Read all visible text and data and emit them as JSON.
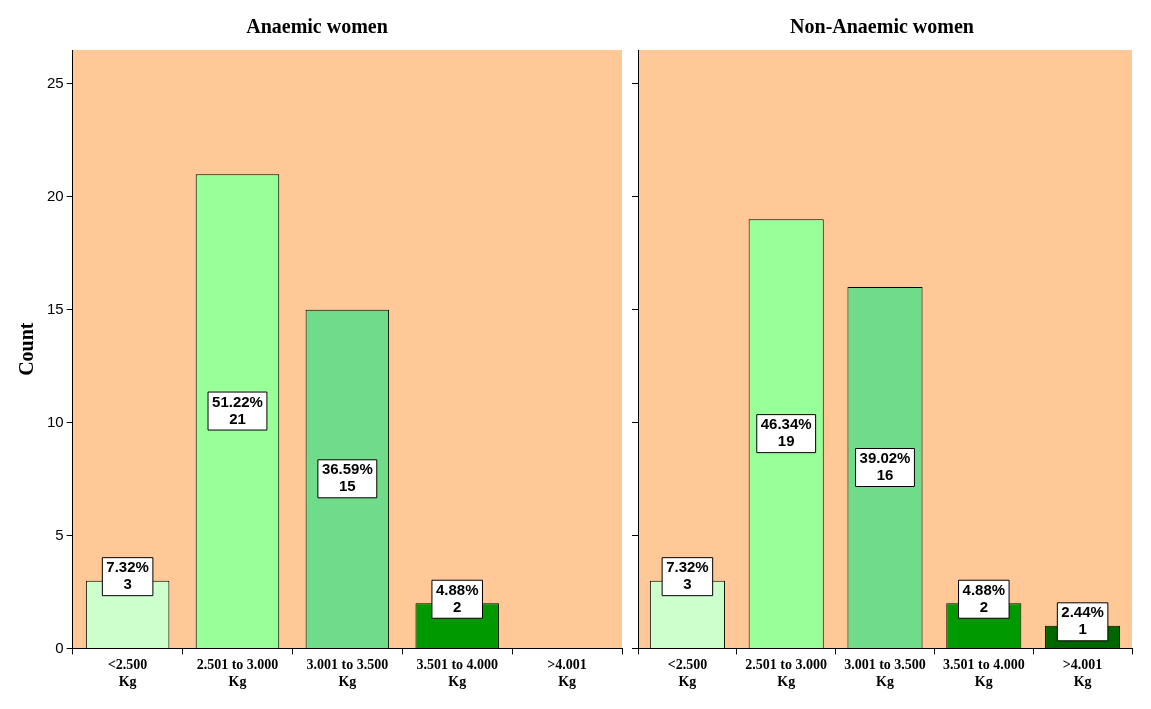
{
  "chart_data": [
    {
      "type": "bar",
      "title": "Anaemic women",
      "ylabel": "Count",
      "categories": [
        "<2.500 Kg",
        "2.501 to 3.000 Kg",
        "3.001 to 3.500 Kg",
        "3.501 to 4.000 Kg",
        ">4.001 Kg"
      ],
      "values": [
        3,
        21,
        15,
        2,
        null
      ],
      "colors": [
        "#ccffcc",
        "#99ff99",
        "#70dc8a",
        "#009900",
        "#006600"
      ],
      "value_labels": [
        "7.32%\n3",
        "51.22%\n21",
        "36.59%\n15",
        "4.88%\n2",
        null
      ],
      "ylim": [
        0,
        26.5
      ],
      "yticks": [
        0,
        5,
        10,
        15,
        20,
        25
      ],
      "grid": false,
      "legend": false
    },
    {
      "type": "bar",
      "title": "Non-Anaemic women",
      "categories": [
        "<2.500 Kg",
        "2.501 to 3.000 Kg",
        "3.001 to 3.500 Kg",
        "3.501 to 4.000 Kg",
        ">4.001 Kg"
      ],
      "values": [
        3,
        19,
        16,
        2,
        1
      ],
      "colors": [
        "#ccffcc",
        "#99ff99",
        "#70dc8a",
        "#009900",
        "#006600"
      ],
      "value_labels": [
        "7.32%\n3",
        "46.34%\n19",
        "39.02%\n16",
        "4.88%\n2",
        "2.44%\n1"
      ],
      "ylim": [
        0,
        26.5
      ],
      "yticks": [
        0,
        5,
        10,
        15,
        20,
        25
      ],
      "tick_labels": "x",
      "grid": false,
      "legend": false
    }
  ]
}
